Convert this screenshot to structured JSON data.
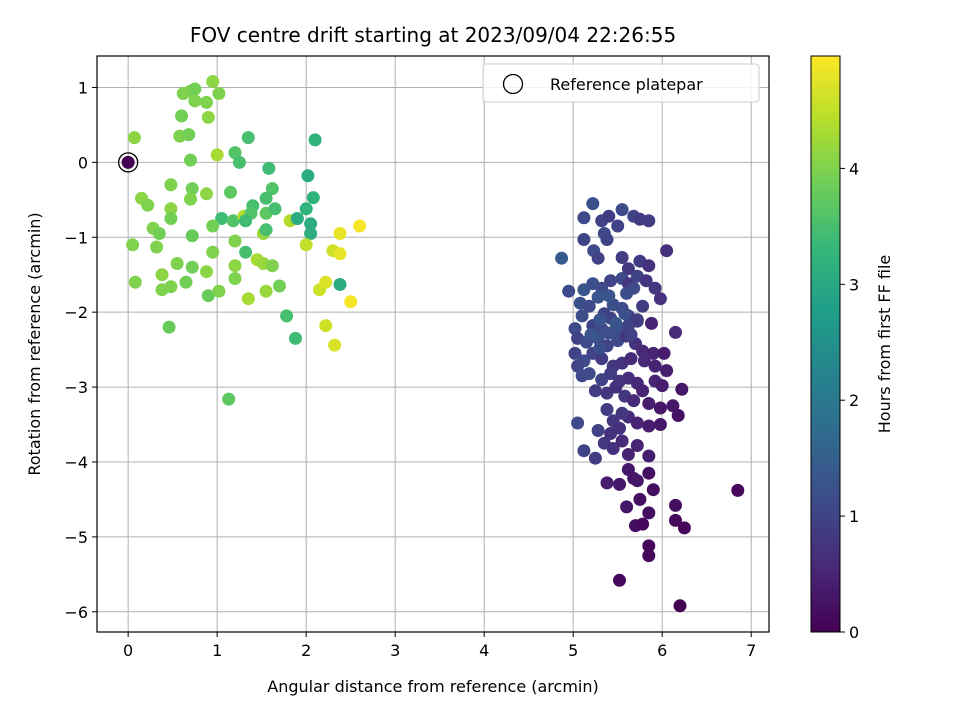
{
  "chart_data": {
    "type": "scatter",
    "title": "FOV centre drift starting at 2023/09/04 22:26:55",
    "xlabel": "Angular distance from reference (arcmin)",
    "ylabel": "Rotation from reference (arcmin)",
    "xlim": [
      -0.35,
      7.2
    ],
    "ylim": [
      -6.27,
      1.42
    ],
    "xticks": [
      0,
      1,
      2,
      3,
      4,
      5,
      6,
      7
    ],
    "yticks": [
      -6,
      -5,
      -4,
      -3,
      -2,
      -1,
      0,
      1
    ],
    "grid": true,
    "legend": {
      "position": "upper-right",
      "entries": [
        "Reference platepar"
      ]
    },
    "reference_point": {
      "x": 0,
      "y": 0,
      "c": 0
    },
    "colorbar": {
      "label": "Hours from first FF file",
      "range": [
        0,
        4.97
      ],
      "ticks": [
        0,
        1,
        2,
        3,
        4
      ],
      "colormap": "viridis"
    },
    "colors": {
      "viridis": [
        "#440154",
        "#482878",
        "#3e4a89",
        "#31688e",
        "#26828e",
        "#1f9e89",
        "#35b779",
        "#6ece58",
        "#b5de2b",
        "#fde725"
      ],
      "grid": "#b0b0b0",
      "axis": "#000000"
    },
    "points": [
      [
        0.07,
        0.33,
        4.1
      ],
      [
        0.62,
        0.92,
        4.0
      ],
      [
        0.7,
        0.95,
        4.0
      ],
      [
        0.75,
        0.98,
        3.9
      ],
      [
        0.88,
        0.8,
        4.0
      ],
      [
        0.95,
        1.08,
        4.1
      ],
      [
        1.02,
        0.92,
        4.0
      ],
      [
        0.6,
        0.62,
        3.9
      ],
      [
        0.75,
        0.82,
        4.0
      ],
      [
        0.9,
        0.6,
        4.1
      ],
      [
        0.58,
        0.35,
        4.0
      ],
      [
        0.68,
        0.37,
        3.9
      ],
      [
        1.35,
        0.33,
        3.5
      ],
      [
        2.1,
        0.3,
        3.2
      ],
      [
        0.7,
        0.03,
        3.9
      ],
      [
        1.0,
        0.1,
        4.3
      ],
      [
        1.2,
        0.13,
        3.6
      ],
      [
        1.25,
        0.0,
        3.5
      ],
      [
        1.58,
        -0.08,
        3.4
      ],
      [
        2.02,
        -0.18,
        3.1
      ],
      [
        0.48,
        -0.3,
        4.0
      ],
      [
        0.72,
        -0.35,
        3.9
      ],
      [
        0.88,
        -0.42,
        4.1
      ],
      [
        1.15,
        -0.4,
        3.7
      ],
      [
        1.62,
        -0.35,
        3.6
      ],
      [
        2.08,
        -0.47,
        3.2
      ],
      [
        0.15,
        -0.48,
        4.1
      ],
      [
        0.22,
        -0.57,
        4.0
      ],
      [
        0.48,
        -0.62,
        4.1
      ],
      [
        0.7,
        -0.49,
        4.0
      ],
      [
        1.4,
        -0.58,
        3.5
      ],
      [
        1.55,
        -0.48,
        3.5
      ],
      [
        2.0,
        -0.62,
        3.2
      ],
      [
        1.05,
        -0.75,
        3.4
      ],
      [
        1.18,
        -0.78,
        3.6
      ],
      [
        1.3,
        -0.72,
        4.4
      ],
      [
        1.38,
        -0.68,
        3.6
      ],
      [
        1.55,
        -0.68,
        3.7
      ],
      [
        1.65,
        -0.62,
        3.5
      ],
      [
        1.82,
        -0.78,
        4.4
      ],
      [
        1.9,
        -0.75,
        3.3
      ],
      [
        2.05,
        -0.82,
        3.1
      ],
      [
        0.48,
        -0.75,
        3.9
      ],
      [
        0.28,
        -0.88,
        4.0
      ],
      [
        0.35,
        -0.95,
        3.9
      ],
      [
        0.72,
        -0.98,
        3.8
      ],
      [
        1.32,
        -0.78,
        3.4
      ],
      [
        1.52,
        -0.95,
        4.2
      ],
      [
        1.55,
        -0.9,
        3.5
      ],
      [
        2.05,
        -0.95,
        3.1
      ],
      [
        2.38,
        -0.95,
        4.8
      ],
      [
        2.6,
        -0.85,
        4.9
      ],
      [
        0.05,
        -1.1,
        4.0
      ],
      [
        0.32,
        -1.13,
        4.0
      ],
      [
        1.2,
        -1.05,
        4.0
      ],
      [
        1.32,
        -1.2,
        3.5
      ],
      [
        1.45,
        -1.3,
        4.3
      ],
      [
        1.52,
        -1.35,
        4.2
      ],
      [
        1.9,
        -0.75,
        3.1
      ],
      [
        2.0,
        -1.1,
        4.5
      ],
      [
        2.3,
        -1.18,
        4.6
      ],
      [
        2.38,
        -1.22,
        4.8
      ],
      [
        0.38,
        -1.5,
        4.1
      ],
      [
        0.55,
        -1.35,
        4.0
      ],
      [
        0.72,
        -1.4,
        3.9
      ],
      [
        0.88,
        -1.46,
        4.1
      ],
      [
        0.95,
        -1.2,
        4.0
      ],
      [
        1.2,
        -1.38,
        4.1
      ],
      [
        1.2,
        -1.55,
        4.0
      ],
      [
        1.62,
        -1.38,
        4.0
      ],
      [
        0.08,
        -1.6,
        4.0
      ],
      [
        0.38,
        -1.7,
        4.0
      ],
      [
        0.48,
        -1.66,
        4.0
      ],
      [
        0.65,
        -1.6,
        3.9
      ],
      [
        0.9,
        -1.78,
        3.8
      ],
      [
        1.02,
        -1.72,
        4.0
      ],
      [
        1.35,
        -1.82,
        4.3
      ],
      [
        1.55,
        -1.72,
        4.2
      ],
      [
        1.7,
        -1.65,
        3.9
      ],
      [
        2.15,
        -1.7,
        4.6
      ],
      [
        2.22,
        -1.6,
        4.7
      ],
      [
        2.38,
        -1.63,
        3.1
      ],
      [
        2.5,
        -1.86,
        4.9
      ],
      [
        0.46,
        -2.2,
        3.8
      ],
      [
        1.78,
        -2.05,
        3.5
      ],
      [
        1.88,
        -2.35,
        3.4
      ],
      [
        2.22,
        -2.18,
        4.6
      ],
      [
        2.32,
        -2.44,
        4.7
      ],
      [
        1.13,
        -3.16,
        3.7
      ],
      [
        0.95,
        -0.85,
        3.9
      ],
      [
        4.87,
        -1.28,
        1.4
      ],
      [
        5.12,
        -0.74,
        1.1
      ],
      [
        5.22,
        -0.55,
        1.2
      ],
      [
        5.32,
        -0.78,
        1.0
      ],
      [
        5.35,
        -0.95,
        1.1
      ],
      [
        5.4,
        -0.72,
        0.9
      ],
      [
        5.5,
        -0.85,
        1.0
      ],
      [
        5.55,
        -0.63,
        1.1
      ],
      [
        5.68,
        -0.72,
        1.0
      ],
      [
        5.75,
        -0.76,
        0.9
      ],
      [
        5.85,
        -0.78,
        0.9
      ],
      [
        5.12,
        -1.03,
        1.0
      ],
      [
        5.23,
        -1.18,
        1.1
      ],
      [
        5.28,
        -1.28,
        1.0
      ],
      [
        5.38,
        -1.03,
        1.0
      ],
      [
        5.55,
        -1.27,
        0.9
      ],
      [
        5.62,
        -1.42,
        0.8
      ],
      [
        5.75,
        -1.32,
        0.9
      ],
      [
        5.85,
        -1.38,
        0.7
      ],
      [
        6.05,
        -1.18,
        0.7
      ],
      [
        4.95,
        -1.72,
        1.1
      ],
      [
        5.12,
        -1.7,
        1.3
      ],
      [
        5.22,
        -1.62,
        1.2
      ],
      [
        5.32,
        -1.68,
        1.1
      ],
      [
        5.42,
        -1.58,
        1.0
      ],
      [
        5.55,
        -1.55,
        1.1
      ],
      [
        5.62,
        -1.62,
        0.8
      ],
      [
        5.72,
        -1.52,
        1.0
      ],
      [
        5.82,
        -1.58,
        0.8
      ],
      [
        5.92,
        -1.68,
        0.8
      ],
      [
        5.98,
        -1.82,
        0.7
      ],
      [
        5.08,
        -1.88,
        1.2
      ],
      [
        5.18,
        -1.92,
        1.1
      ],
      [
        5.28,
        -1.8,
        1.3
      ],
      [
        5.35,
        -2.02,
        1.0
      ],
      [
        5.45,
        -1.9,
        1.2
      ],
      [
        5.55,
        -1.95,
        1.1
      ],
      [
        5.62,
        -2.05,
        1.0
      ],
      [
        5.72,
        -2.12,
        0.9
      ],
      [
        5.78,
        -1.92,
        0.9
      ],
      [
        5.1,
        -2.05,
        1.2
      ],
      [
        5.22,
        -2.18,
        1.0
      ],
      [
        5.32,
        -2.22,
        1.1
      ],
      [
        5.42,
        -2.08,
        1.0
      ],
      [
        5.52,
        -2.25,
        1.2
      ],
      [
        5.62,
        -2.18,
        1.0
      ],
      [
        5.72,
        -2.1,
        0.9
      ],
      [
        5.88,
        -2.15,
        0.5
      ],
      [
        5.02,
        -2.22,
        1.1
      ],
      [
        5.05,
        -2.35,
        1.0
      ],
      [
        5.15,
        -2.4,
        1.1
      ],
      [
        5.28,
        -2.35,
        1.2
      ],
      [
        5.38,
        -2.45,
        1.0
      ],
      [
        5.5,
        -2.38,
        1.1
      ],
      [
        5.6,
        -2.32,
        0.8
      ],
      [
        5.7,
        -2.42,
        0.7
      ],
      [
        5.78,
        -2.52,
        0.6
      ],
      [
        5.9,
        -2.55,
        0.5
      ],
      [
        6.02,
        -2.55,
        0.4
      ],
      [
        6.15,
        -2.27,
        0.6
      ],
      [
        5.02,
        -2.55,
        1.0
      ],
      [
        5.12,
        -2.65,
        1.1
      ],
      [
        5.22,
        -2.55,
        1.0
      ],
      [
        5.32,
        -2.62,
        0.9
      ],
      [
        5.45,
        -2.72,
        0.8
      ],
      [
        5.55,
        -2.68,
        0.7
      ],
      [
        5.65,
        -2.62,
        0.6
      ],
      [
        5.8,
        -2.65,
        0.6
      ],
      [
        5.92,
        -2.72,
        0.5
      ],
      [
        6.05,
        -2.78,
        0.4
      ],
      [
        5.05,
        -2.72,
        1.0
      ],
      [
        5.18,
        -2.82,
        1.1
      ],
      [
        5.32,
        -2.9,
        1.0
      ],
      [
        5.42,
        -2.82,
        0.9
      ],
      [
        5.52,
        -2.92,
        0.8
      ],
      [
        5.62,
        -2.88,
        0.7
      ],
      [
        5.72,
        -2.95,
        0.6
      ],
      [
        5.92,
        -2.92,
        0.5
      ],
      [
        6.0,
        -2.98,
        0.4
      ],
      [
        6.22,
        -3.03,
        0.3
      ],
      [
        5.1,
        -2.85,
        1.1
      ],
      [
        5.25,
        -3.05,
        0.9
      ],
      [
        5.38,
        -3.08,
        0.8
      ],
      [
        5.48,
        -3.0,
        0.7
      ],
      [
        5.58,
        -3.12,
        0.8
      ],
      [
        5.68,
        -3.18,
        0.6
      ],
      [
        5.78,
        -3.05,
        0.5
      ],
      [
        5.85,
        -3.22,
        0.4
      ],
      [
        5.98,
        -3.28,
        0.3
      ],
      [
        6.12,
        -3.25,
        0.3
      ],
      [
        5.05,
        -3.48,
        1.1
      ],
      [
        5.28,
        -3.58,
        1.0
      ],
      [
        5.38,
        -3.3,
        0.9
      ],
      [
        5.45,
        -3.45,
        0.8
      ],
      [
        5.52,
        -3.55,
        0.7
      ],
      [
        5.62,
        -3.4,
        0.6
      ],
      [
        5.72,
        -3.48,
        0.5
      ],
      [
        5.85,
        -3.52,
        0.4
      ],
      [
        5.98,
        -3.5,
        0.3
      ],
      [
        6.18,
        -3.38,
        0.2
      ],
      [
        5.12,
        -3.85,
        1.0
      ],
      [
        5.25,
        -3.95,
        0.9
      ],
      [
        5.35,
        -3.75,
        0.8
      ],
      [
        5.45,
        -3.82,
        0.7
      ],
      [
        5.55,
        -3.72,
        0.6
      ],
      [
        5.62,
        -3.9,
        0.5
      ],
      [
        5.72,
        -3.78,
        0.5
      ],
      [
        5.85,
        -3.92,
        0.4
      ],
      [
        5.55,
        -3.35,
        0.8
      ],
      [
        5.42,
        -3.62,
        0.7
      ],
      [
        5.38,
        -4.28,
        0.4
      ],
      [
        5.52,
        -4.3,
        0.3
      ],
      [
        5.62,
        -4.1,
        0.3
      ],
      [
        5.72,
        -4.25,
        0.3
      ],
      [
        5.85,
        -4.15,
        0.2
      ],
      [
        5.6,
        -4.6,
        0.3
      ],
      [
        5.75,
        -4.5,
        0.2
      ],
      [
        5.9,
        -4.37,
        0.2
      ],
      [
        6.15,
        -4.58,
        0.2
      ],
      [
        6.85,
        -4.38,
        0.1
      ],
      [
        5.7,
        -4.85,
        0.2
      ],
      [
        5.85,
        -4.68,
        0.2
      ],
      [
        5.78,
        -4.83,
        0.1
      ],
      [
        6.15,
        -4.78,
        0.1
      ],
      [
        6.25,
        -4.88,
        0.1
      ],
      [
        5.85,
        -5.12,
        0.1
      ],
      [
        5.85,
        -5.25,
        0.1
      ],
      [
        5.52,
        -5.58,
        0.1
      ],
      [
        6.2,
        -5.92,
        0.0
      ],
      [
        5.68,
        -4.22,
        0.3
      ],
      [
        5.2,
        -2.3,
        1.3
      ],
      [
        5.3,
        -2.48,
        1.2
      ],
      [
        5.4,
        -2.28,
        1.2
      ],
      [
        5.48,
        -2.15,
        1.3
      ],
      [
        5.58,
        -2.02,
        1.2
      ],
      [
        5.4,
        -1.78,
        1.3
      ],
      [
        5.6,
        -1.75,
        1.2
      ],
      [
        5.68,
        -1.68,
        1.1
      ],
      [
        5.3,
        -2.1,
        1.3
      ],
      [
        5.65,
        -2.3,
        1.0
      ]
    ]
  }
}
